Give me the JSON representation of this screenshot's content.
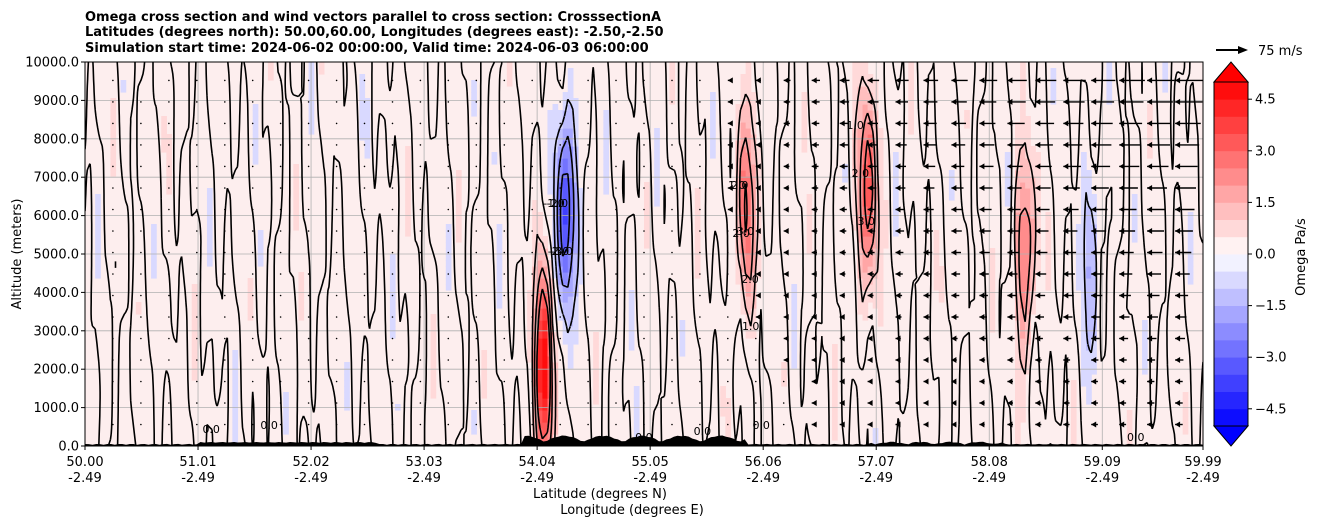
{
  "chart_data": {
    "type": "heatmap",
    "title_lines": [
      "Omega cross section and wind vectors parallel to cross section: CrosssectionA",
      "Latitudes (degrees north): 50.00,60.00, Longitudes (degrees east): -2.50,-2.50",
      "Simulation start time: 2024-06-02 00:00:00, Valid time: 2024-06-03 06:00:00"
    ],
    "xlabel_line1": "Latitude (degrees N)",
    "xlabel_line2": "Longitude (degrees E)",
    "ylabel": "Altitude (meters)",
    "x_range": [
      50.0,
      59.99
    ],
    "y_range": [
      0,
      10000
    ],
    "x_ticks": [
      {
        "lat": "50.00",
        "lon": "-2.49",
        "value": 50.0
      },
      {
        "lat": "51.01",
        "lon": "-2.49",
        "value": 51.01
      },
      {
        "lat": "52.02",
        "lon": "-2.49",
        "value": 52.02
      },
      {
        "lat": "53.03",
        "lon": "-2.49",
        "value": 53.03
      },
      {
        "lat": "54.04",
        "lon": "-2.49",
        "value": 54.04
      },
      {
        "lat": "55.05",
        "lon": "-2.49",
        "value": 55.05
      },
      {
        "lat": "56.06",
        "lon": "-2.49",
        "value": 56.06
      },
      {
        "lat": "57.07",
        "lon": "-2.49",
        "value": 57.07
      },
      {
        "lat": "58.08",
        "lon": "-2.49",
        "value": 58.08
      },
      {
        "lat": "59.09",
        "lon": "-2.49",
        "value": 59.09
      },
      {
        "lat": "59.99",
        "lon": "-2.49",
        "value": 59.99
      }
    ],
    "y_ticks": [
      {
        "label": "0.0",
        "value": 0
      },
      {
        "label": "1000.0",
        "value": 1000
      },
      {
        "label": "2000.0",
        "value": 2000
      },
      {
        "label": "3000.0",
        "value": 3000
      },
      {
        "label": "4000.0",
        "value": 4000
      },
      {
        "label": "5000.0",
        "value": 5000
      },
      {
        "label": "6000.0",
        "value": 6000
      },
      {
        "label": "7000.0",
        "value": 7000
      },
      {
        "label": "8000.0",
        "value": 8000
      },
      {
        "label": "9000.0",
        "value": 9000
      },
      {
        "label": "10000.0",
        "value": 10000
      }
    ],
    "grid": true,
    "colorbar": {
      "label": "Omega Pa/s",
      "range": [
        -5,
        5
      ],
      "levels": 20,
      "extend": "both",
      "ticks": [
        {
          "label": "4.5",
          "value": 4.5
        },
        {
          "label": "3.0",
          "value": 3.0
        },
        {
          "label": "1.5",
          "value": 1.5
        },
        {
          "label": "0.0",
          "value": 0.0
        },
        {
          "label": "−1.5",
          "value": -1.5
        },
        {
          "label": "−3.0",
          "value": -3.0
        },
        {
          "label": "−4.5",
          "value": -4.5
        }
      ],
      "cmap_low": "#0000ff",
      "cmap_mid": "#ffffff",
      "cmap_high": "#ff0000"
    },
    "quiver_key": {
      "label": "75 m/s",
      "speed": 75
    },
    "contour_levels": [
      -3.0,
      -2.0,
      -1.0,
      0.0,
      1.0,
      2.0,
      3.0
    ],
    "contour_labels_sample": [
      "0.0",
      "1.0",
      "-1.0",
      "2.0",
      "-2.0",
      "3.0"
    ],
    "features": [
      {
        "name": "strong-ascent-core",
        "lat": 54.1,
        "alt_center": 2000,
        "omega": 4.8
      },
      {
        "name": "strong-descent-core",
        "lat": 54.3,
        "alt_center": 6200,
        "omega": -4.0
      },
      {
        "name": "ascent-band",
        "lat": 55.9,
        "alt_center": 6000,
        "omega": 3.0
      },
      {
        "name": "ascent-band",
        "lat": 57.0,
        "alt_center": 6800,
        "omega": 3.5
      },
      {
        "name": "ascent-band",
        "lat": 58.4,
        "alt_center": 5000,
        "omega": 3.0
      },
      {
        "name": "descent-band",
        "lat": 59.0,
        "alt_center": 5000,
        "omega": -1.5
      }
    ],
    "terrain": "low orography along the surface, highest near 54.5-55.5 N (~300 m)"
  }
}
